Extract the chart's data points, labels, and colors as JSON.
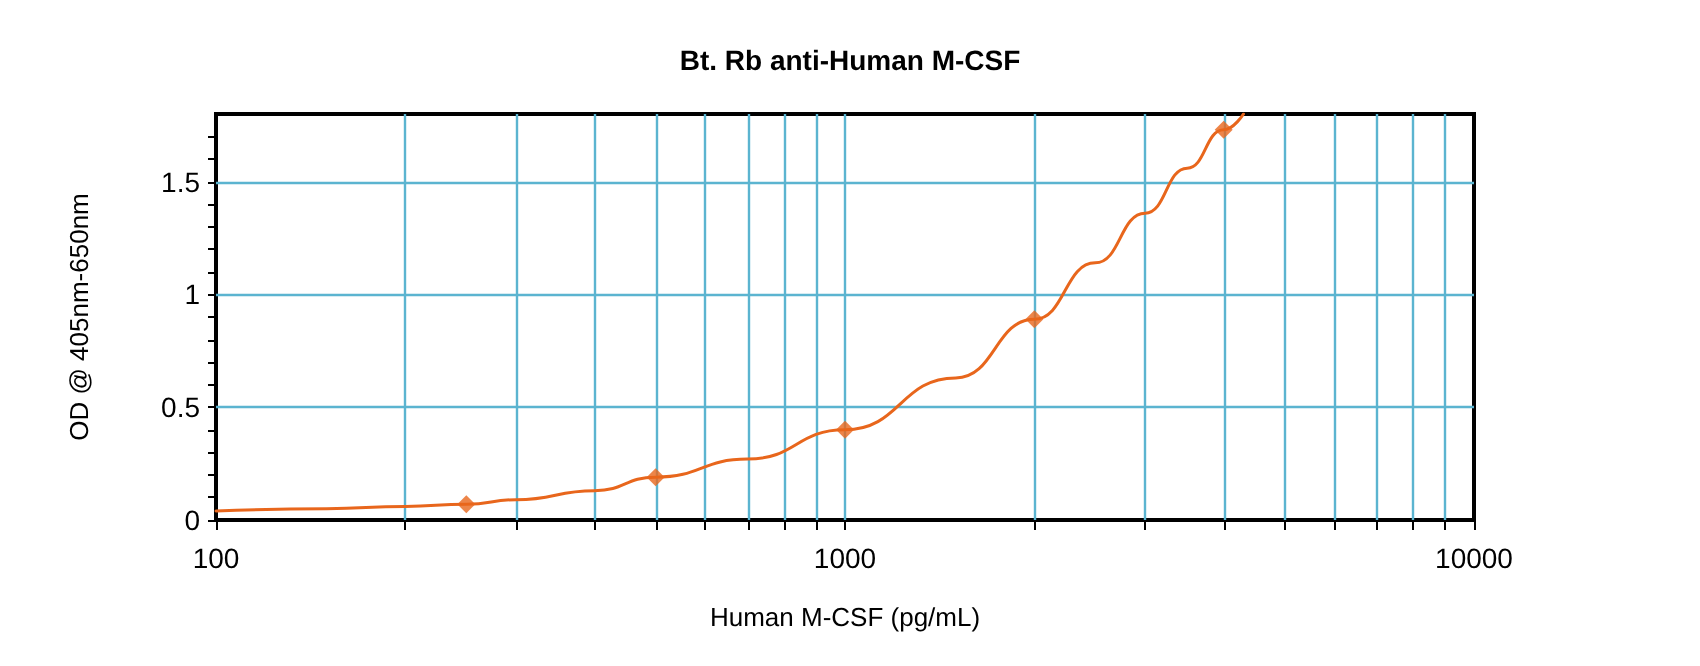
{
  "chart_data": {
    "type": "line",
    "title": "Bt. Rb anti-Human M-CSF",
    "xlabel": "Human M-CSF (pg/mL)",
    "ylabel": "OD @ 405nm-650nm",
    "log": "x",
    "grid": true,
    "marker": "diamond",
    "xlim": [
      100,
      10000
    ],
    "ylim": [
      0,
      1.8
    ],
    "xticks": [
      100,
      {
        "value": 200,
        "label": null
      },
      {
        "value": 300,
        "label": null
      },
      {
        "value": 400,
        "label": null
      },
      {
        "value": 500,
        "label": null
      },
      {
        "value": 600,
        "label": null
      },
      {
        "value": 700,
        "label": null
      },
      {
        "value": 800,
        "label": null
      },
      {
        "value": 900,
        "label": null
      },
      1000,
      {
        "value": 2000,
        "label": null
      },
      {
        "value": 3000,
        "label": null
      },
      {
        "value": 4000,
        "label": null
      },
      {
        "value": 5000,
        "label": null
      },
      {
        "value": 6000,
        "label": null
      },
      {
        "value": 7000,
        "label": null
      },
      {
        "value": 8000,
        "label": null
      },
      {
        "value": 9000,
        "label": null
      },
      10000
    ],
    "yticks": [
      0,
      {
        "value": 0.1,
        "label": null
      },
      {
        "value": 0.2,
        "label": null
      },
      {
        "value": 0.3,
        "label": null
      },
      {
        "value": 0.4,
        "label": null
      },
      0.5,
      {
        "value": 0.6,
        "label": null
      },
      {
        "value": 0.7,
        "label": null
      },
      {
        "value": 0.8,
        "label": null
      },
      {
        "value": 0.9,
        "label": null
      },
      1,
      {
        "value": 1.1,
        "label": null
      },
      {
        "value": 1.2,
        "label": null
      },
      {
        "value": 1.3,
        "label": null
      },
      {
        "value": 1.4,
        "label": null
      },
      1.5,
      {
        "value": 1.6,
        "label": null
      },
      {
        "value": 1.7,
        "label": null
      }
    ],
    "series": [
      {
        "marker": "none",
        "color": "#e8661c",
        "x": [
          100,
          150,
          200,
          250,
          300,
          400,
          500,
          700,
          1000,
          1500,
          2000,
          2500,
          3000,
          3500,
          4000,
          4300
        ],
        "values": [
          0.04,
          0.05,
          0.06,
          0.07,
          0.09,
          0.13,
          0.19,
          0.27,
          0.4,
          0.63,
          0.89,
          1.14,
          1.36,
          1.56,
          1.73,
          1.8
        ]
      },
      {
        "type": "scatter",
        "color": "#e8661c",
        "x": [
          250,
          500,
          1000,
          2000,
          4000
        ],
        "values": [
          0.07,
          0.19,
          0.4,
          0.89,
          1.73
        ]
      }
    ]
  }
}
